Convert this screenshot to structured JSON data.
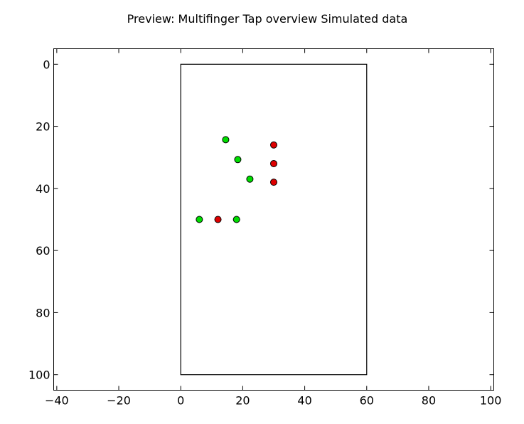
{
  "chart_data": {
    "type": "scatter",
    "title": "Preview: Multifinger Tap overview Simulated data",
    "xlabel": "",
    "ylabel": "",
    "xlim": [
      -41,
      101
    ],
    "ylim": [
      105,
      -5
    ],
    "y_inverted": true,
    "grid": false,
    "legend": "none",
    "xticks": [
      -40,
      -20,
      0,
      20,
      40,
      60,
      80,
      100
    ],
    "yticks": [
      0,
      20,
      40,
      60,
      80,
      100
    ],
    "xtick_labels": [
      "−40",
      "−20",
      "0",
      "20",
      "40",
      "60",
      "80",
      "100"
    ],
    "ytick_labels": [
      "0",
      "20",
      "40",
      "60",
      "80",
      "100"
    ],
    "surface_rectangle": {
      "x": [
        0,
        60
      ],
      "y": [
        0,
        100
      ],
      "color": "#000000"
    },
    "series": [
      {
        "color": "#00dd00",
        "points": [
          {
            "x": 14.5,
            "y": 24.3
          },
          {
            "x": 18.4,
            "y": 30.7
          },
          {
            "x": 22.3,
            "y": 37.0
          },
          {
            "x": 6.0,
            "y": 50.0
          },
          {
            "x": 18.0,
            "y": 50.0
          }
        ]
      },
      {
        "color": "#dd0000",
        "points": [
          {
            "x": 30.0,
            "y": 26.0
          },
          {
            "x": 30.0,
            "y": 32.0
          },
          {
            "x": 30.0,
            "y": 38.0
          },
          {
            "x": 12.0,
            "y": 50.0
          }
        ]
      }
    ]
  }
}
